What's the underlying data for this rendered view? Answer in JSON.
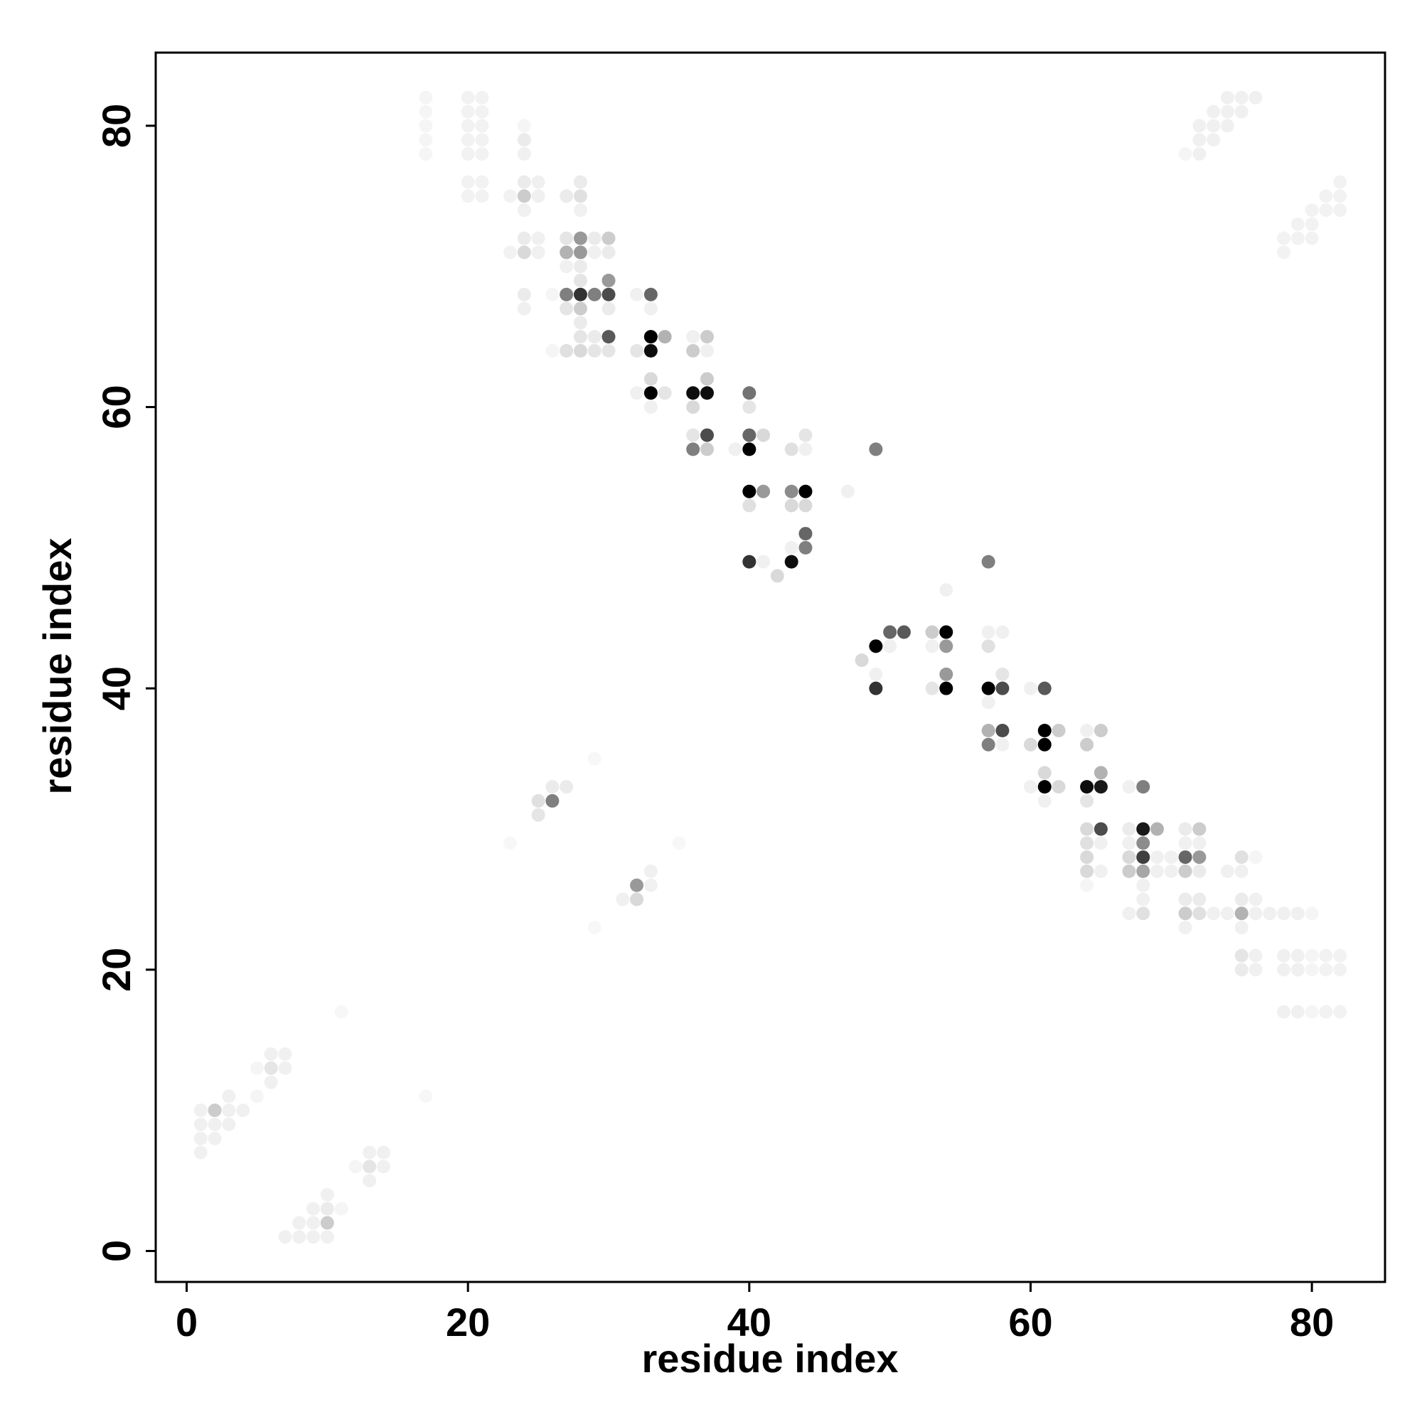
{
  "chart_data": {
    "type": "scatter",
    "xlabel": "residue index",
    "ylabel": "residue index",
    "xlim": [
      -2.2,
      85.2
    ],
    "ylim": [
      -2.2,
      85.2
    ],
    "xticks": [
      0,
      20,
      40,
      60,
      80
    ],
    "yticks": [
      0,
      20,
      40,
      60,
      80
    ],
    "series": [
      {
        "color": "#000000",
        "x": [
          1,
          1,
          1,
          1,
          2,
          2,
          2,
          3,
          3,
          3,
          4,
          5,
          5,
          6,
          6,
          6,
          7,
          7,
          7,
          8,
          8,
          9,
          9,
          9,
          10,
          10,
          10,
          10,
          11,
          12,
          13,
          13,
          13,
          14,
          14,
          11,
          17,
          29,
          29,
          35,
          23,
          25,
          25,
          26,
          26,
          27,
          31,
          32,
          32,
          33,
          33,
          17,
          17,
          17,
          17,
          17,
          20,
          20,
          20,
          20,
          20,
          20,
          20,
          21,
          21,
          21,
          21,
          21,
          21,
          21,
          23,
          23,
          24,
          24,
          24,
          24,
          24,
          24,
          24,
          24,
          24,
          24,
          25,
          25,
          25,
          25,
          26,
          26,
          27,
          27,
          27,
          27,
          27,
          27,
          27,
          28,
          28,
          28,
          28,
          28,
          28,
          28,
          28,
          28,
          28,
          28,
          28,
          29,
          29,
          29,
          29,
          29,
          30,
          30,
          30,
          30,
          30,
          30,
          30,
          32,
          32,
          32,
          33,
          33,
          33,
          33,
          33,
          33,
          33,
          34,
          34,
          36,
          36,
          36,
          36,
          36,
          36,
          37,
          37,
          37,
          37,
          37,
          37,
          39,
          40,
          40,
          40,
          40,
          40,
          40,
          40,
          41,
          41,
          41,
          42,
          43,
          43,
          43,
          43,
          43,
          44,
          44,
          44,
          44,
          44,
          44,
          47,
          48,
          49,
          49,
          49,
          49,
          50,
          50,
          51,
          53,
          53,
          53,
          54,
          54,
          54,
          54,
          54,
          57,
          57,
          57,
          57,
          57,
          57,
          57,
          58,
          58,
          58,
          58,
          58,
          60,
          60,
          60,
          61,
          61,
          61,
          61,
          61,
          61,
          62,
          62,
          64,
          64,
          64,
          64,
          64,
          64,
          64,
          64,
          64,
          65,
          65,
          65,
          65,
          65,
          65,
          67,
          67,
          67,
          67,
          67,
          67,
          68,
          68,
          68,
          68,
          68,
          68,
          68,
          68,
          69,
          69,
          69,
          70,
          70,
          71,
          71,
          71,
          71,
          71,
          71,
          71,
          72,
          72,
          72,
          72,
          72,
          72,
          73,
          74,
          74,
          75,
          75,
          75,
          75,
          75,
          75,
          75,
          76,
          76,
          76,
          76,
          76,
          77,
          78,
          78,
          78,
          78,
          79,
          79,
          79,
          79,
          80,
          80,
          80,
          80,
          81,
          81,
          81,
          82,
          82,
          82,
          71,
          72,
          72,
          72,
          73,
          73,
          73,
          74,
          74,
          74,
          75,
          75,
          76,
          78,
          78,
          79,
          79,
          80,
          80,
          80,
          81,
          81,
          82,
          82,
          82
        ],
        "y": [
          7,
          8,
          9,
          10,
          8,
          9,
          10,
          9,
          10,
          11,
          10,
          11,
          13,
          12,
          13,
          14,
          13,
          14,
          1,
          1,
          2,
          1,
          2,
          3,
          1,
          2,
          3,
          4,
          3,
          6,
          5,
          6,
          7,
          6,
          7,
          17,
          11,
          23,
          35,
          29,
          29,
          31,
          32,
          32,
          33,
          33,
          25,
          25,
          26,
          26,
          27,
          78,
          79,
          80,
          81,
          82,
          75,
          76,
          78,
          79,
          80,
          81,
          82,
          75,
          76,
          78,
          79,
          80,
          81,
          82,
          71,
          75,
          67,
          68,
          71,
          72,
          74,
          75,
          76,
          78,
          79,
          80,
          71,
          72,
          75,
          76,
          64,
          68,
          64,
          67,
          68,
          70,
          71,
          72,
          75,
          64,
          65,
          66,
          67,
          68,
          69,
          70,
          71,
          72,
          74,
          75,
          76,
          64,
          65,
          68,
          71,
          72,
          64,
          65,
          67,
          68,
          69,
          71,
          72,
          61,
          64,
          68,
          60,
          61,
          62,
          64,
          65,
          67,
          68,
          61,
          65,
          57,
          58,
          60,
          61,
          64,
          65,
          57,
          58,
          61,
          62,
          64,
          65,
          57,
          49,
          53,
          54,
          57,
          58,
          60,
          61,
          49,
          54,
          58,
          48,
          49,
          50,
          53,
          54,
          57,
          50,
          51,
          53,
          54,
          57,
          58,
          54,
          42,
          40,
          41,
          43,
          57,
          43,
          44,
          44,
          40,
          43,
          44,
          40,
          41,
          43,
          44,
          47,
          36,
          37,
          39,
          40,
          43,
          44,
          49,
          36,
          37,
          40,
          41,
          44,
          33,
          36,
          40,
          32,
          33,
          34,
          36,
          37,
          40,
          33,
          37,
          26,
          27,
          28,
          29,
          30,
          32,
          33,
          36,
          37,
          27,
          29,
          30,
          33,
          34,
          37,
          24,
          27,
          28,
          29,
          30,
          33,
          24,
          25,
          26,
          27,
          28,
          29,
          30,
          33,
          27,
          28,
          30,
          27,
          28,
          23,
          24,
          25,
          27,
          28,
          29,
          30,
          24,
          25,
          27,
          28,
          29,
          30,
          24,
          24,
          27,
          20,
          21,
          23,
          24,
          25,
          27,
          28,
          20,
          21,
          24,
          25,
          28,
          24,
          17,
          20,
          21,
          24,
          17,
          20,
          21,
          24,
          17,
          20,
          21,
          24,
          17,
          20,
          21,
          17,
          20,
          21,
          78,
          78,
          79,
          80,
          79,
          80,
          81,
          80,
          81,
          82,
          81,
          82,
          82,
          71,
          72,
          72,
          73,
          72,
          73,
          74,
          74,
          75,
          74,
          75,
          76
        ],
        "values": [
          0.06,
          0.06,
          0.06,
          0.06,
          0.06,
          0.06,
          0.2,
          0.06,
          0.06,
          0.06,
          0.06,
          0.04,
          0.04,
          0.06,
          0.1,
          0.06,
          0.06,
          0.06,
          0.06,
          0.06,
          0.06,
          0.06,
          0.06,
          0.06,
          0.06,
          0.2,
          0.08,
          0.06,
          0.04,
          0.04,
          0.06,
          0.1,
          0.06,
          0.06,
          0.06,
          0.03,
          0.03,
          0.03,
          0.03,
          0.03,
          0.03,
          0.1,
          0.12,
          0.5,
          0.08,
          0.08,
          0.06,
          0.15,
          0.4,
          0.06,
          0.06,
          0.04,
          0.04,
          0.04,
          0.04,
          0.04,
          0.05,
          0.05,
          0.05,
          0.05,
          0.05,
          0.05,
          0.05,
          0.05,
          0.05,
          0.05,
          0.05,
          0.05,
          0.05,
          0.05,
          0.05,
          0.05,
          0.06,
          0.08,
          0.15,
          0.08,
          0.06,
          0.2,
          0.08,
          0.06,
          0.08,
          0.04,
          0.06,
          0.06,
          0.06,
          0.06,
          0.04,
          0.04,
          0.12,
          0.1,
          0.5,
          0.06,
          0.3,
          0.1,
          0.08,
          0.15,
          0.1,
          0.08,
          0.2,
          0.8,
          0.1,
          0.08,
          0.4,
          0.4,
          0.06,
          0.12,
          0.08,
          0.1,
          0.08,
          0.5,
          0.06,
          0.08,
          0.1,
          0.65,
          0.08,
          0.7,
          0.4,
          0.08,
          0.2,
          0.06,
          0.1,
          0.06,
          0.06,
          1,
          0.15,
          0.95,
          1,
          0.06,
          0.6,
          0.1,
          0.3,
          0.5,
          0.1,
          0.15,
          0.95,
          0.2,
          0.06,
          0.2,
          0.7,
          0.95,
          0.2,
          0.06,
          0.2,
          0.06,
          0.8,
          0.12,
          1,
          1,
          0.6,
          0.1,
          0.55,
          0.06,
          0.4,
          0.15,
          0.15,
          0.95,
          0.06,
          0.15,
          0.45,
          0.12,
          0.5,
          0.6,
          0.15,
          1,
          0.06,
          0.1,
          0.06,
          0.15,
          0.8,
          0.06,
          1,
          0.5,
          0.06,
          0.6,
          0.65,
          0.1,
          0.06,
          0.2,
          1,
          0.4,
          0.4,
          1,
          0.06,
          0.5,
          0.3,
          0.06,
          1,
          0.12,
          0.06,
          0.5,
          0.06,
          0.7,
          0.7,
          0.1,
          0.06,
          0.06,
          0.15,
          0.06,
          0.06,
          1,
          0.15,
          1,
          1,
          0.65,
          0.15,
          0.2,
          0.04,
          0.15,
          0.15,
          0.12,
          0.15,
          0.1,
          0.95,
          0.2,
          0.06,
          0.06,
          0.06,
          0.7,
          0.9,
          0.3,
          0.2,
          0.06,
          0.2,
          0.15,
          0.06,
          0.08,
          0.06,
          0.12,
          0.06,
          0.06,
          0.35,
          0.75,
          0.45,
          0.9,
          0.5,
          0.06,
          0.06,
          0.3,
          0.06,
          0.06,
          0.06,
          0.2,
          0.08,
          0.2,
          0.6,
          0.06,
          0.08,
          0.12,
          0.08,
          0.08,
          0.4,
          0.06,
          0.2,
          0.06,
          0.06,
          0.06,
          0.08,
          0.1,
          0.06,
          0.3,
          0.08,
          0.06,
          0.12,
          0.06,
          0.06,
          0.06,
          0.06,
          0.04,
          0.06,
          0.06,
          0.06,
          0.06,
          0.06,
          0.06,
          0.06,
          0.06,
          0.06,
          0.04,
          0.04,
          0.04,
          0.04,
          0.05,
          0.05,
          0.05,
          0.05,
          0.05,
          0.05,
          0.04,
          0.06,
          0.06,
          0.06,
          0.06,
          0.06,
          0.06,
          0.06,
          0.06,
          0.06,
          0.06,
          0.06,
          0.06,
          0.05,
          0.05,
          0.05,
          0.05,
          0.05,
          0.05,
          0.05,
          0.05,
          0.05,
          0.05,
          0.05,
          0.05
        ]
      }
    ]
  }
}
